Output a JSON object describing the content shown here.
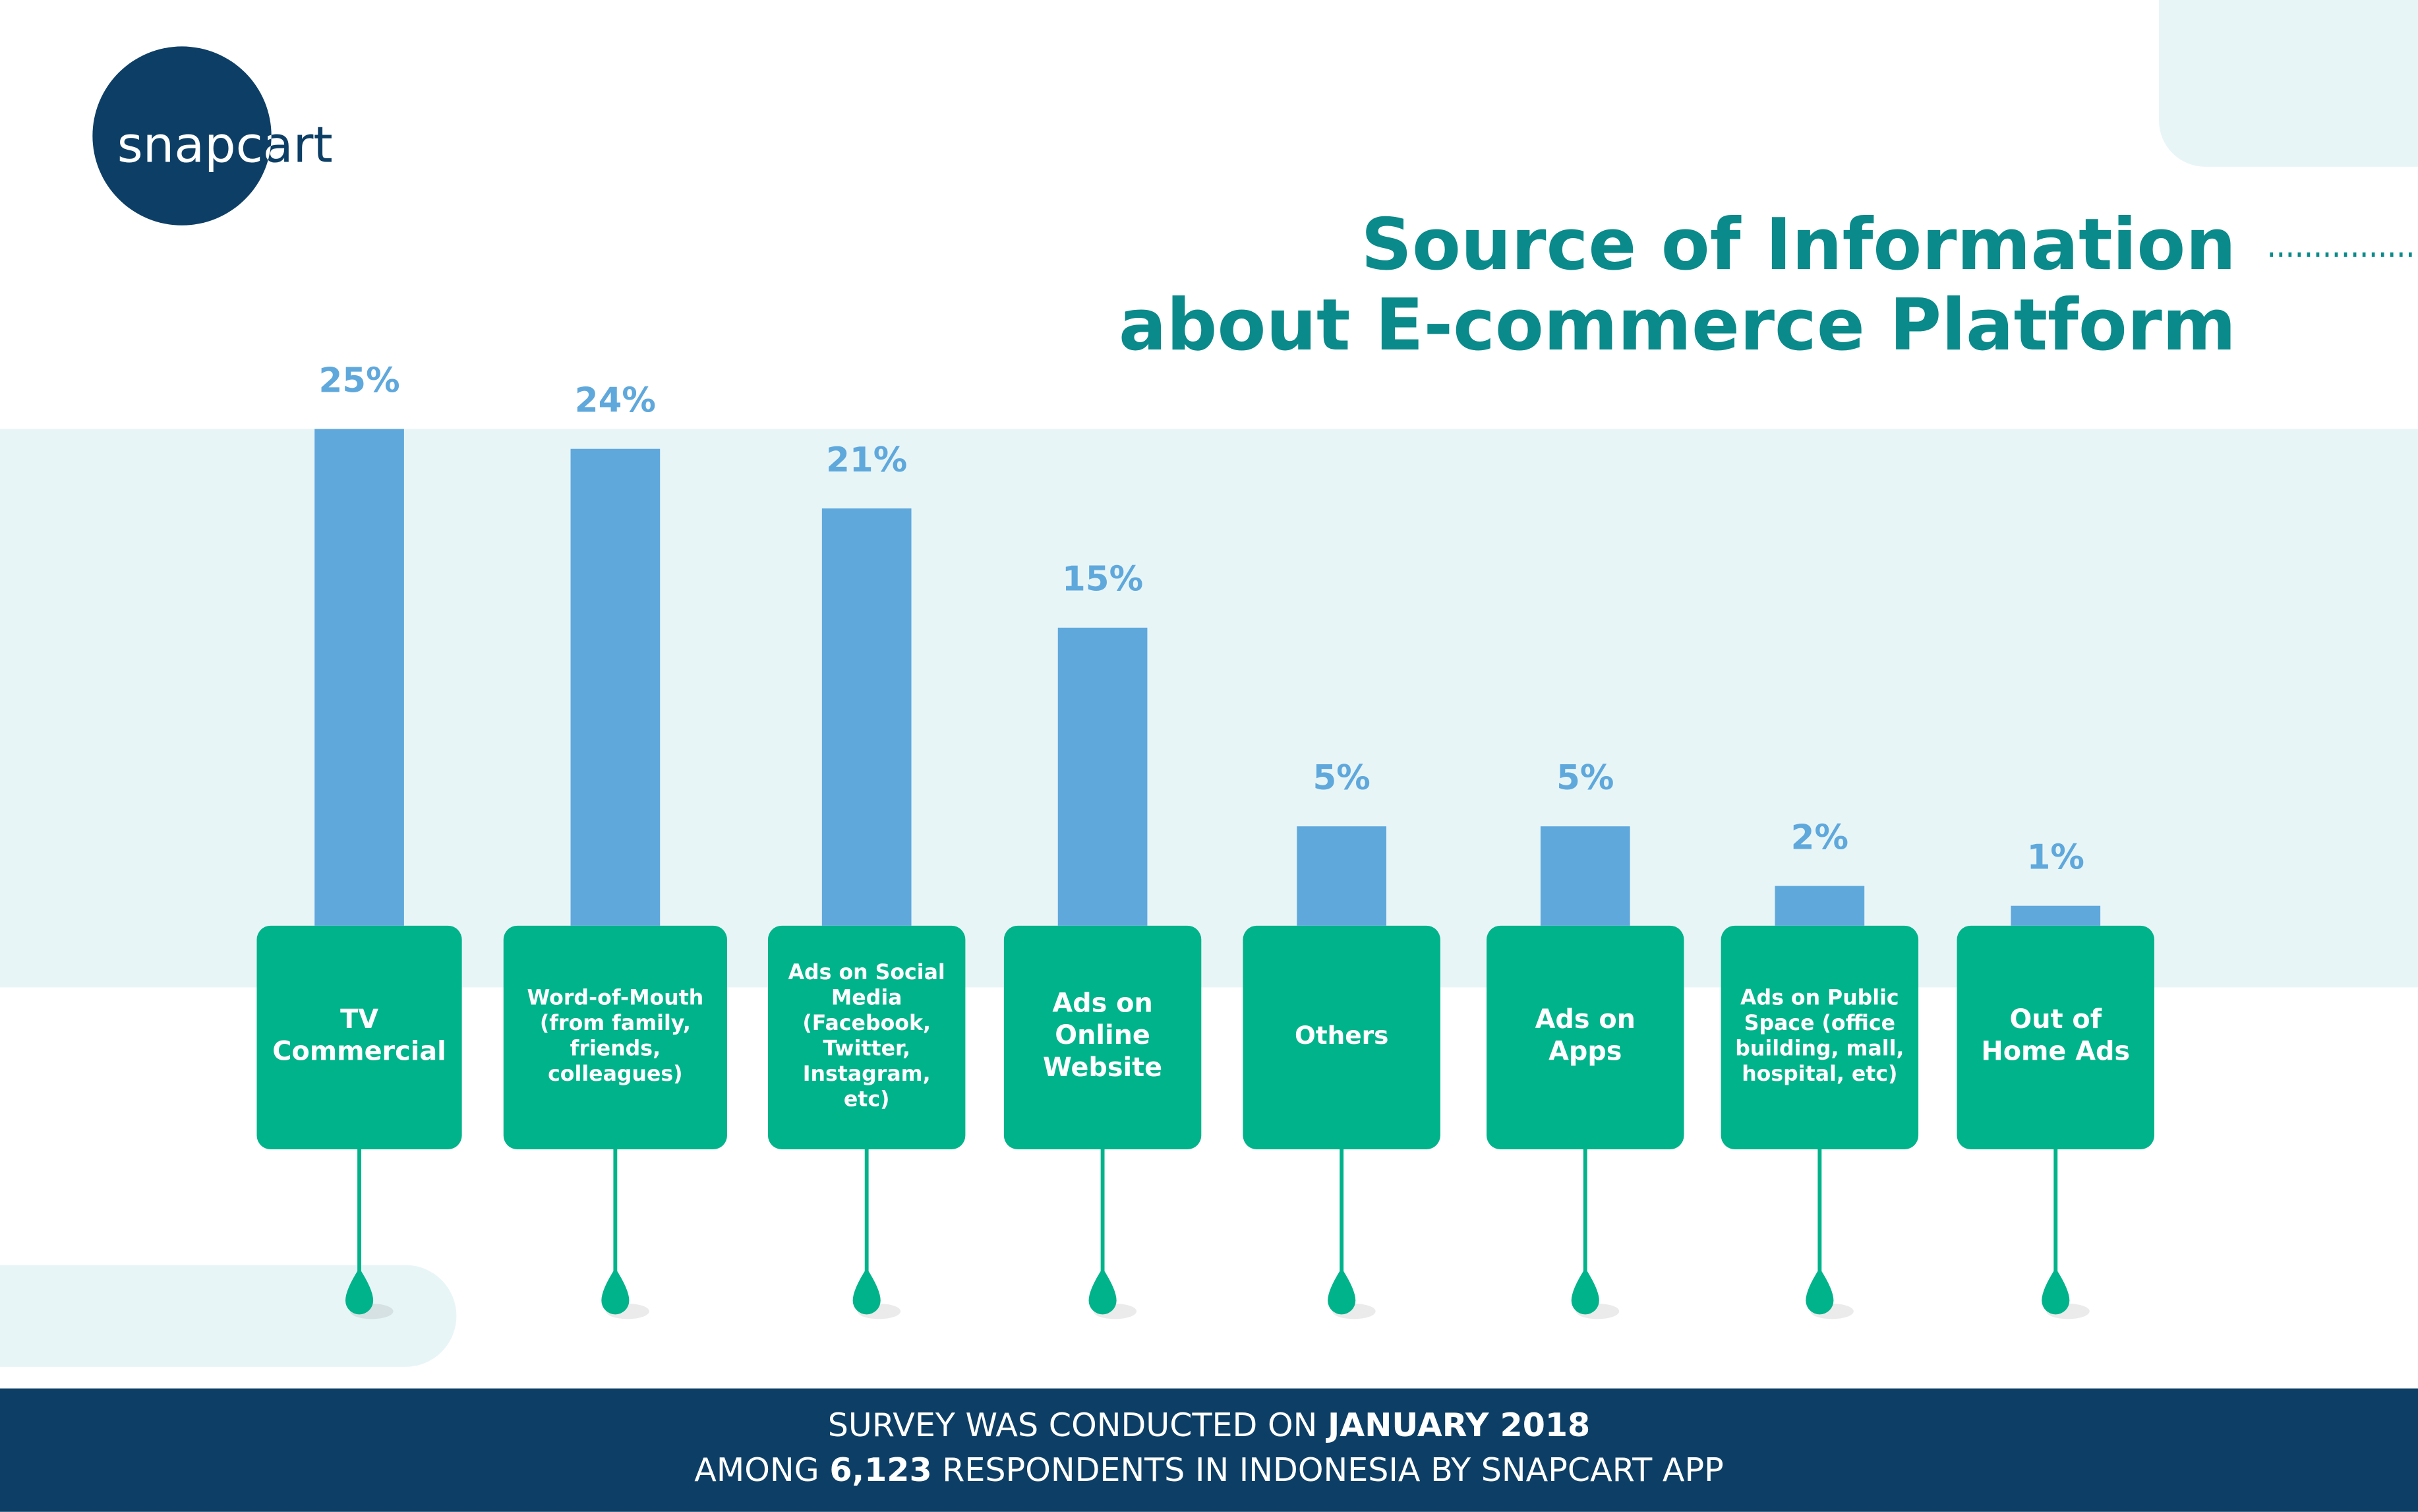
{
  "logo": "snapcart",
  "chart_data": {
    "type": "bar",
    "title": "Source of Information\nabout E-commerce Platform",
    "categories": [
      "TV\nCommercial",
      "Word-of-Mouth\n(from family,\nfriends,\ncolleagues)",
      "Ads on Social\nMedia\n(Facebook,\nTwitter,\nInstagram,\netc)",
      "Ads on\nOnline\nWebsite",
      "Others",
      "Ads on\nApps",
      "Ads on Public\nSpace (office\nbuilding, mall,\nhospital, etc)",
      "Out of\nHome Ads"
    ],
    "values": [
      25,
      24,
      21,
      15,
      5,
      5,
      2,
      1
    ],
    "value_labels": [
      "25%",
      "24%",
      "21%",
      "15%",
      "5%",
      "5%",
      "2%",
      "1%"
    ],
    "color": "#5fa8dc",
    "label_color": "#00b38a",
    "ylim": [
      0,
      25
    ]
  },
  "footer": {
    "line1": [
      "SURVEY WAS CONDUCTED ON ",
      "JANUARY 2018"
    ],
    "line2": [
      "AMONG ",
      "6,123",
      " RESPONDENTS IN INDONESIA BY SNAPCART APP"
    ]
  }
}
